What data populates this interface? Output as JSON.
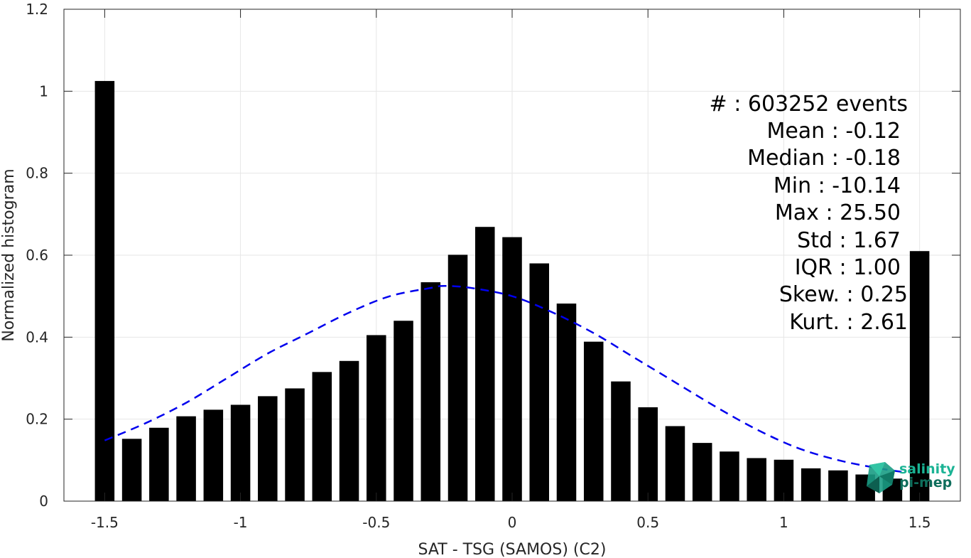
{
  "chart_data": {
    "type": "bar",
    "xlabel": "SAT - TSG (SAMOS) (C2)",
    "ylabel": "Normalized histogram",
    "xlim": [
      -1.65,
      1.65
    ],
    "ylim": [
      0,
      1.2
    ],
    "xticks": [
      -1.5,
      -1,
      -0.5,
      0,
      0.5,
      1,
      1.5
    ],
    "xtick_labels": [
      "-1.5",
      "-1",
      "-0.5",
      "0",
      "0.5",
      "1",
      "1.5"
    ],
    "yticks": [
      0,
      0.2,
      0.4,
      0.6,
      0.8,
      1,
      1.2
    ],
    "ytick_labels": [
      "0",
      "0.2",
      "0.4",
      "0.6",
      "0.8",
      "1",
      "1.2"
    ],
    "grid": true,
    "bar_color": "#000000",
    "bin_centers": [
      -1.5,
      -1.4,
      -1.3,
      -1.2,
      -1.1,
      -1.0,
      -0.9,
      -0.8,
      -0.7,
      -0.6,
      -0.5,
      -0.4,
      -0.3,
      -0.2,
      -0.1,
      0.0,
      0.1,
      0.2,
      0.3,
      0.4,
      0.5,
      0.6,
      0.7,
      0.8,
      0.9,
      1.0,
      1.1,
      1.2,
      1.3,
      1.4,
      1.5
    ],
    "values": [
      1.025,
      0.152,
      0.179,
      0.207,
      0.223,
      0.235,
      0.256,
      0.275,
      0.315,
      0.342,
      0.405,
      0.44,
      0.534,
      0.601,
      0.669,
      0.644,
      0.58,
      0.482,
      0.389,
      0.292,
      0.229,
      0.183,
      0.142,
      0.121,
      0.105,
      0.101,
      0.08,
      0.075,
      0.065,
      0.055,
      0.61
    ],
    "fit_curve": {
      "style": "dashed",
      "color": "#0000ee",
      "x": [
        -1.5,
        -1.35,
        -1.2,
        -1.05,
        -0.9,
        -0.75,
        -0.6,
        -0.45,
        -0.3,
        -0.25,
        -0.15,
        0.0,
        0.15,
        0.3,
        0.45,
        0.6,
        0.75,
        0.9,
        1.05,
        1.2,
        1.35,
        1.45
      ],
      "y": [
        0.148,
        0.19,
        0.24,
        0.3,
        0.36,
        0.41,
        0.46,
        0.5,
        0.52,
        0.525,
        0.52,
        0.5,
        0.46,
        0.41,
        0.35,
        0.29,
        0.23,
        0.175,
        0.13,
        0.1,
        0.08,
        0.07
      ]
    }
  },
  "stats": [
    {
      "label": "#  : 603252 events"
    },
    {
      "label": "Mean : -0.12"
    },
    {
      "label": "Median : -0.18"
    },
    {
      "label": "Min : -10.14"
    },
    {
      "label": "Max : 25.50"
    },
    {
      "label": "Std : 1.67"
    },
    {
      "label": "IQR : 1.00"
    },
    {
      "label": "Skew. : 0.25"
    },
    {
      "label": "Kurt. : 2.61"
    }
  ],
  "logo": {
    "line1": "salinity",
    "line2": "pi-mep",
    "color1": "#1ab394",
    "color2": "#0e6e5c"
  }
}
